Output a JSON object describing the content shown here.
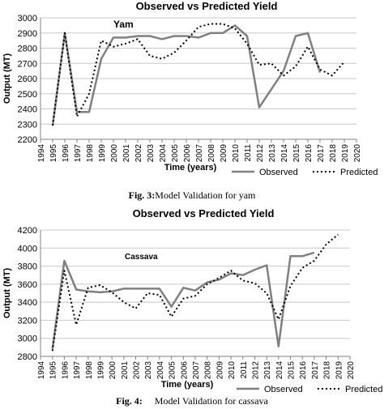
{
  "figures": [
    {
      "caption_number": "Fig. 3:",
      "caption_text": "Model Validation for yam"
    },
    {
      "caption_number": "Fig. 4:",
      "caption_text": "Model Validation for cassava"
    }
  ],
  "chart_data": [
    {
      "type": "line",
      "title": "Observed vs Predicted Yield",
      "annotation": "Yam",
      "xlabel": "Time (years)",
      "ylabel": "Output (MT)",
      "xlim": [
        1994,
        2020
      ],
      "ylim": [
        2200,
        3000
      ],
      "x_ticks": [
        1994,
        1995,
        1996,
        1997,
        1998,
        1999,
        2000,
        2001,
        2002,
        2003,
        2004,
        2005,
        2006,
        2007,
        2008,
        2009,
        2010,
        2011,
        2012,
        2013,
        2014,
        2015,
        2016,
        2017,
        2018,
        2019,
        2020
      ],
      "y_ticks": [
        2200,
        2300,
        2400,
        2500,
        2600,
        2700,
        2800,
        2900,
        3000
      ],
      "grid": "horizontal",
      "legend_position": "bottom-right",
      "series": [
        {
          "name": "Observed",
          "style": "solid",
          "color": "#808080",
          "x": [
            1995,
            1996,
            1997,
            1998,
            1999,
            2000,
            2001,
            2002,
            2003,
            2004,
            2005,
            2006,
            2007,
            2008,
            2009,
            2010,
            2011,
            2012,
            2013,
            2014,
            2015,
            2016,
            2017
          ],
          "values": [
            2290,
            2900,
            2380,
            2380,
            2730,
            2870,
            2870,
            2880,
            2880,
            2860,
            2880,
            2880,
            2870,
            2900,
            2900,
            2950,
            2880,
            2410,
            2530,
            2650,
            2880,
            2900,
            2640
          ]
        },
        {
          "name": "Predicted",
          "style": "dotted",
          "color": "#000000",
          "x": [
            1995,
            1996,
            1997,
            1998,
            1999,
            2000,
            2001,
            2002,
            2003,
            2004,
            2005,
            2006,
            2007,
            2008,
            2009,
            2010,
            2011,
            2012,
            2013,
            2014,
            2015,
            2016,
            2017,
            2018,
            2019
          ],
          "values": [
            2290,
            2900,
            2350,
            2500,
            2850,
            2810,
            2830,
            2860,
            2750,
            2730,
            2770,
            2850,
            2940,
            2960,
            2960,
            2930,
            2830,
            2690,
            2700,
            2620,
            2680,
            2810,
            2660,
            2620,
            2710
          ]
        }
      ]
    },
    {
      "type": "line",
      "title": "Observed vs Predicted Yield",
      "annotation": "Cassava",
      "xlabel": "Time (years)",
      "ylabel": "Output (MT)",
      "xlim": [
        1994,
        2020
      ],
      "ylim": [
        2800,
        4200
      ],
      "x_ticks": [
        1994,
        1995,
        1996,
        1997,
        1998,
        1999,
        2000,
        2001,
        2002,
        2003,
        2004,
        2005,
        2006,
        2007,
        2008,
        2009,
        2010,
        2011,
        2012,
        2013,
        2014,
        2015,
        2016,
        2017,
        2018,
        2019,
        2020
      ],
      "y_ticks": [
        2800,
        3000,
        3200,
        3400,
        3600,
        3800,
        4000,
        4200
      ],
      "grid": "horizontal",
      "legend_position": "bottom-right",
      "series": [
        {
          "name": "Observed",
          "style": "solid",
          "color": "#808080",
          "x": [
            1995,
            1996,
            1997,
            1998,
            1999,
            2000,
            2001,
            2002,
            2003,
            2004,
            2005,
            2006,
            2007,
            2008,
            2009,
            2010,
            2011,
            2012,
            2013,
            2014,
            2015,
            2016,
            2017
          ],
          "values": [
            2880,
            3860,
            3540,
            3520,
            3510,
            3520,
            3550,
            3550,
            3550,
            3550,
            3350,
            3560,
            3530,
            3620,
            3650,
            3720,
            3700,
            3760,
            3810,
            2910,
            3910,
            3910,
            3950
          ]
        },
        {
          "name": "Predicted",
          "style": "dotted",
          "color": "#000000",
          "x": [
            1995,
            1996,
            1997,
            1998,
            1999,
            2000,
            2001,
            2002,
            2003,
            2004,
            2005,
            2006,
            2007,
            2008,
            2009,
            2010,
            2011,
            2012,
            2013,
            2014,
            2015,
            2016,
            2017,
            2018,
            2019
          ],
          "values": [
            2860,
            3750,
            3150,
            3560,
            3590,
            3510,
            3400,
            3330,
            3500,
            3480,
            3240,
            3440,
            3470,
            3600,
            3670,
            3750,
            3640,
            3610,
            3500,
            3210,
            3580,
            3780,
            3860,
            4040,
            4150
          ]
        }
      ]
    }
  ]
}
